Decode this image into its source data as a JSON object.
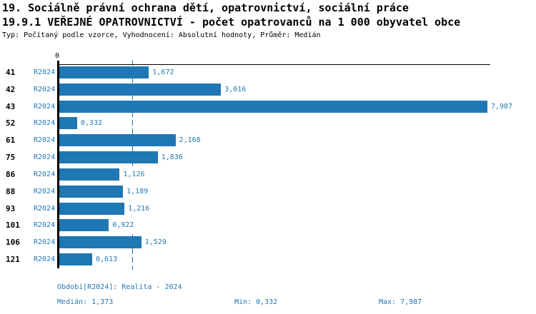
{
  "header": {
    "title_line1": "19. Sociálně právní ochrana dětí, opatrovnictví, sociální práce",
    "title_line2": "19.9.1 VEŘEJNÉ OPATROVNICTVÍ - počet opatrovanců na 1 000 obyvatel obce",
    "subtitle": "Typ: Počítaný podle vzorce, Vyhodnocení: Absolutní hodnoty, Průměr: Medián"
  },
  "chart_data": {
    "type": "bar",
    "orientation": "horizontal",
    "title": "19.9.1 VEŘEJNÉ OPATROVNICTVÍ - počet opatrovanců na 1 000 obyvatel obce",
    "categories": [
      "41",
      "42",
      "43",
      "52",
      "61",
      "75",
      "86",
      "88",
      "93",
      "101",
      "106",
      "121"
    ],
    "series": [
      {
        "name": "R2024",
        "values": [
          1.672,
          3.016,
          7.987,
          0.332,
          2.168,
          1.836,
          1.126,
          1.189,
          1.216,
          0.922,
          1.529,
          0.613
        ],
        "value_labels": [
          "1,672",
          "3,016",
          "7,987",
          "0,332",
          "2,168",
          "1,836",
          "1,126",
          "1,189",
          "1,216",
          "0,922",
          "1,529",
          "0,613"
        ]
      }
    ],
    "xlim": [
      0,
      8.05
    ],
    "x_tick_labels": [
      "0"
    ],
    "median_value": 1.373,
    "min_value": 0.332,
    "max_value": 7.987,
    "grid": false,
    "legend_position": "none",
    "bar_color": "#1f77b4",
    "label_color": "#1f77b4",
    "axis_color": "#000000"
  },
  "footer": {
    "period": "Období[R2024]: Realita - 2024",
    "median": "Medián: 1,373",
    "min": "Min: 0,332",
    "max": "Max: 7,987"
  }
}
